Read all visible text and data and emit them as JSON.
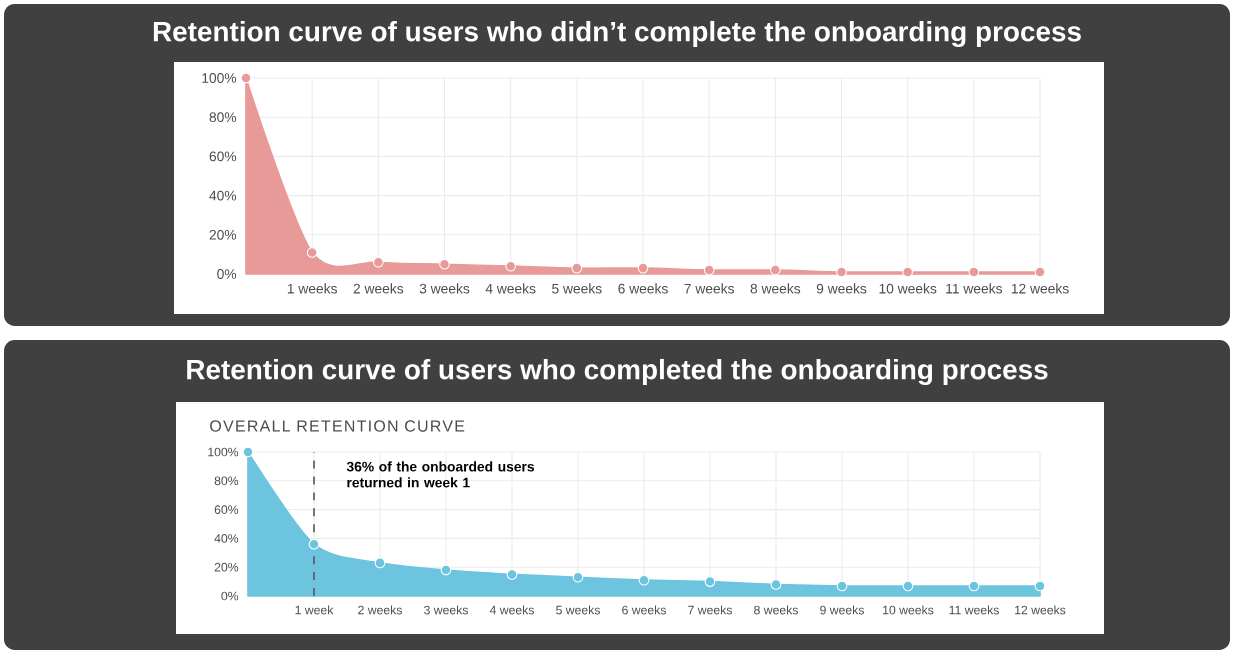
{
  "chart_data": [
    {
      "type": "area",
      "title": "Retention curve of users who didn’t complete the onboarding process",
      "categories": [
        null,
        "1 weeks",
        "2 weeks",
        "3 weeks",
        "4 weeks",
        "5 weeks",
        "6 weeks",
        "7 weeks",
        "8 weeks",
        "9 weeks",
        "10 weeks",
        "11 weeks",
        "12 weeks"
      ],
      "values": [
        100,
        11,
        6,
        5,
        4,
        3,
        3,
        2,
        2,
        1,
        1,
        1,
        1
      ],
      "color": "#e79a98",
      "ylim": [
        0,
        100
      ],
      "yticks": [
        {
          "value": 0,
          "label": "0%"
        },
        {
          "value": 20,
          "label": "20%"
        },
        {
          "value": 40,
          "label": "40%"
        },
        {
          "value": 60,
          "label": "60%"
        },
        {
          "value": 80,
          "label": "80%"
        },
        {
          "value": 100,
          "label": "100%"
        }
      ],
      "grid": true,
      "marker": "circle"
    },
    {
      "type": "area",
      "title": "Retention curve of users who completed the onboarding process",
      "subtitle": "OVERALL RETENTION CURVE",
      "categories": [
        null,
        "1 week",
        "2 weeks",
        "3 weeks",
        "4 weeks",
        "5 weeks",
        "6 weeks",
        "7 weeks",
        "8 weeks",
        "9 weeks",
        "10 weeks",
        "11 weeks",
        "12 weeks"
      ],
      "values": [
        100,
        36,
        23,
        18,
        15,
        13,
        11,
        10,
        8,
        7,
        7,
        7,
        7
      ],
      "color": "#6cc4df",
      "ylim": [
        0,
        100
      ],
      "yticks": [
        {
          "value": 0,
          "label": "0%"
        },
        {
          "value": 20,
          "label": "20%"
        },
        {
          "value": 40,
          "label": "40%"
        },
        {
          "value": 60,
          "label": "60%"
        },
        {
          "value": 80,
          "label": "80%"
        },
        {
          "value": 100,
          "label": "100%"
        }
      ],
      "grid": true,
      "marker": "circle",
      "ref_lines": [
        {
          "axis": "x",
          "value": "1 week",
          "label": "36% of the onboarded users returned in week 1",
          "line_style": "dashed",
          "color": "#555555"
        }
      ]
    }
  ]
}
